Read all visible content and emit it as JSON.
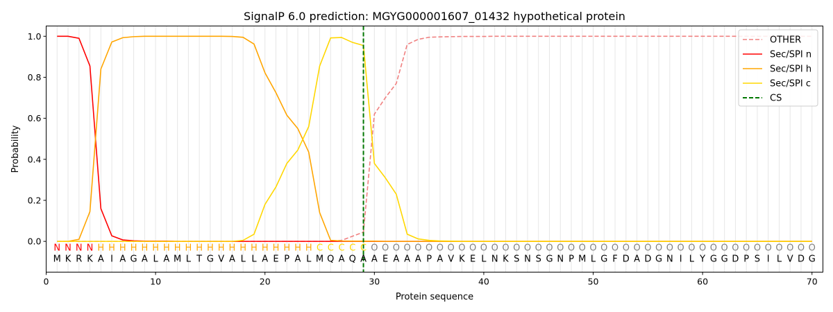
{
  "chart_data": {
    "type": "line",
    "title": "SignalP 6.0 prediction: MGYG000001607_01432 hypothetical protein",
    "xlabel": "Protein sequence",
    "ylabel": "Probability",
    "xlim": [
      0,
      71
    ],
    "ylim": [
      -0.15,
      1.05
    ],
    "x_ticks": [
      0,
      10,
      20,
      30,
      40,
      50,
      60,
      70
    ],
    "y_ticks": [
      0.0,
      0.2,
      0.4,
      0.6,
      0.8,
      1.0
    ],
    "y_tick_labels": [
      "0.0",
      "0.2",
      "0.4",
      "0.6",
      "0.8",
      "1.0"
    ],
    "x_tick_labels": [
      "0",
      "10",
      "20",
      "30",
      "40",
      "50",
      "60",
      "70"
    ],
    "grid": "vertical lines at each position",
    "legend_position": "top-right",
    "sequence": [
      "M",
      "K",
      "R",
      "K",
      "A",
      "I",
      "A",
      "G",
      "A",
      "L",
      "A",
      "M",
      "L",
      "T",
      "G",
      "V",
      "A",
      "L",
      "L",
      "A",
      "E",
      "P",
      "A",
      "L",
      "M",
      "Q",
      "A",
      "Q",
      "A",
      "A",
      "E",
      "A",
      "A",
      "A",
      "P",
      "A",
      "V",
      "K",
      "E",
      "L",
      "N",
      "K",
      "S",
      "N",
      "S",
      "G",
      "N",
      "P",
      "M",
      "L",
      "G",
      "F",
      "D",
      "A",
      "D",
      "G",
      "N",
      "I",
      "L",
      "Y",
      "G",
      "G",
      "D",
      "P",
      "S",
      "I",
      "L",
      "V",
      "D",
      "G"
    ],
    "region_labels": [
      "N",
      "N",
      "N",
      "N",
      "H",
      "H",
      "H",
      "H",
      "H",
      "H",
      "H",
      "H",
      "H",
      "H",
      "H",
      "H",
      "H",
      "H",
      "H",
      "H",
      "H",
      "H",
      "H",
      "H",
      "C",
      "C",
      "C",
      "C",
      "C",
      "O",
      "O",
      "O",
      "O",
      "O",
      "O",
      "O",
      "O",
      "O",
      "O",
      "O",
      "O",
      "O",
      "O",
      "O",
      "O",
      "O",
      "O",
      "O",
      "O",
      "O",
      "O",
      "O",
      "O",
      "O",
      "O",
      "O",
      "O",
      "O",
      "O",
      "O",
      "O",
      "O",
      "O",
      "O",
      "O",
      "O",
      "O",
      "O",
      "O",
      "O"
    ],
    "region_colors": {
      "N": "#ff0000",
      "H": "#ffa500",
      "C": "#ffd700",
      "O": "#808080"
    },
    "cleavage_site": 29,
    "series": [
      {
        "name": "OTHER",
        "color": "#f08080",
        "dash": "dashed",
        "values": [
          0,
          0,
          0,
          0,
          0,
          0,
          0,
          0,
          0,
          0,
          0,
          0,
          0,
          0,
          0,
          0,
          0,
          0,
          0,
          0,
          0,
          0,
          0,
          0,
          0,
          0,
          0.005,
          0.025,
          0.045,
          0.62,
          0.7,
          0.77,
          0.96,
          0.985,
          0.995,
          0.997,
          0.998,
          0.999,
          0.999,
          0.999,
          1,
          1,
          1,
          1,
          1,
          1,
          1,
          1,
          1,
          1,
          1,
          1,
          1,
          1,
          1,
          1,
          1,
          1,
          1,
          1,
          1,
          1,
          1,
          1,
          1,
          1,
          1,
          1,
          1,
          1
        ]
      },
      {
        "name": "Sec/SPI n",
        "color": "#ff0000",
        "dash": "solid",
        "values": [
          1.0,
          1.0,
          0.99,
          0.855,
          0.16,
          0.027,
          0.007,
          0.003,
          0.001,
          0.001,
          0.001,
          0,
          0,
          0,
          0,
          0,
          0,
          0,
          0,
          0,
          0,
          0,
          0,
          0,
          0,
          0,
          0,
          0,
          0,
          0,
          0,
          0,
          0,
          0,
          0,
          0,
          0,
          0,
          0,
          0,
          0,
          0,
          0,
          0,
          0,
          0,
          0,
          0,
          0,
          0,
          0,
          0,
          0,
          0,
          0,
          0,
          0,
          0,
          0,
          0,
          0,
          0,
          0,
          0,
          0,
          0,
          0,
          0,
          0,
          0
        ]
      },
      {
        "name": "Sec/SPI h",
        "color": "#ffa500",
        "dash": "solid",
        "values": [
          0,
          0,
          0.01,
          0.145,
          0.84,
          0.972,
          0.993,
          0.998,
          1.0,
          1.0,
          1.0,
          1.0,
          1.0,
          1.0,
          1.0,
          1.0,
          0.999,
          0.995,
          0.962,
          0.822,
          0.725,
          0.615,
          0.55,
          0.435,
          0.14,
          0.005,
          0.002,
          0.001,
          0.001,
          0.001,
          0,
          0,
          0,
          0,
          0,
          0,
          0,
          0,
          0,
          0,
          0,
          0,
          0,
          0,
          0,
          0,
          0,
          0,
          0,
          0,
          0,
          0,
          0,
          0,
          0,
          0,
          0,
          0,
          0,
          0,
          0,
          0,
          0,
          0,
          0,
          0,
          0,
          0,
          0,
          0
        ]
      },
      {
        "name": "Sec/SPI c",
        "color": "#ffd700",
        "dash": "solid",
        "values": [
          0,
          0,
          0,
          0,
          0,
          0,
          0,
          0,
          0,
          0,
          0,
          0,
          0,
          0,
          0,
          0,
          0,
          0.005,
          0.035,
          0.18,
          0.265,
          0.38,
          0.445,
          0.56,
          0.855,
          0.992,
          0.994,
          0.97,
          0.955,
          0.38,
          0.31,
          0.23,
          0.035,
          0.012,
          0.005,
          0.002,
          0.001,
          0,
          0,
          0,
          0,
          0,
          0,
          0,
          0,
          0,
          0,
          0,
          0,
          0,
          0,
          0,
          0,
          0,
          0,
          0,
          0,
          0,
          0,
          0,
          0,
          0,
          0,
          0,
          0,
          0,
          0,
          0,
          0,
          0
        ]
      }
    ],
    "legend": [
      "OTHER",
      "Sec/SPI n",
      "Sec/SPI h",
      "Sec/SPI c",
      "CS"
    ],
    "cs_color": "#007700"
  }
}
